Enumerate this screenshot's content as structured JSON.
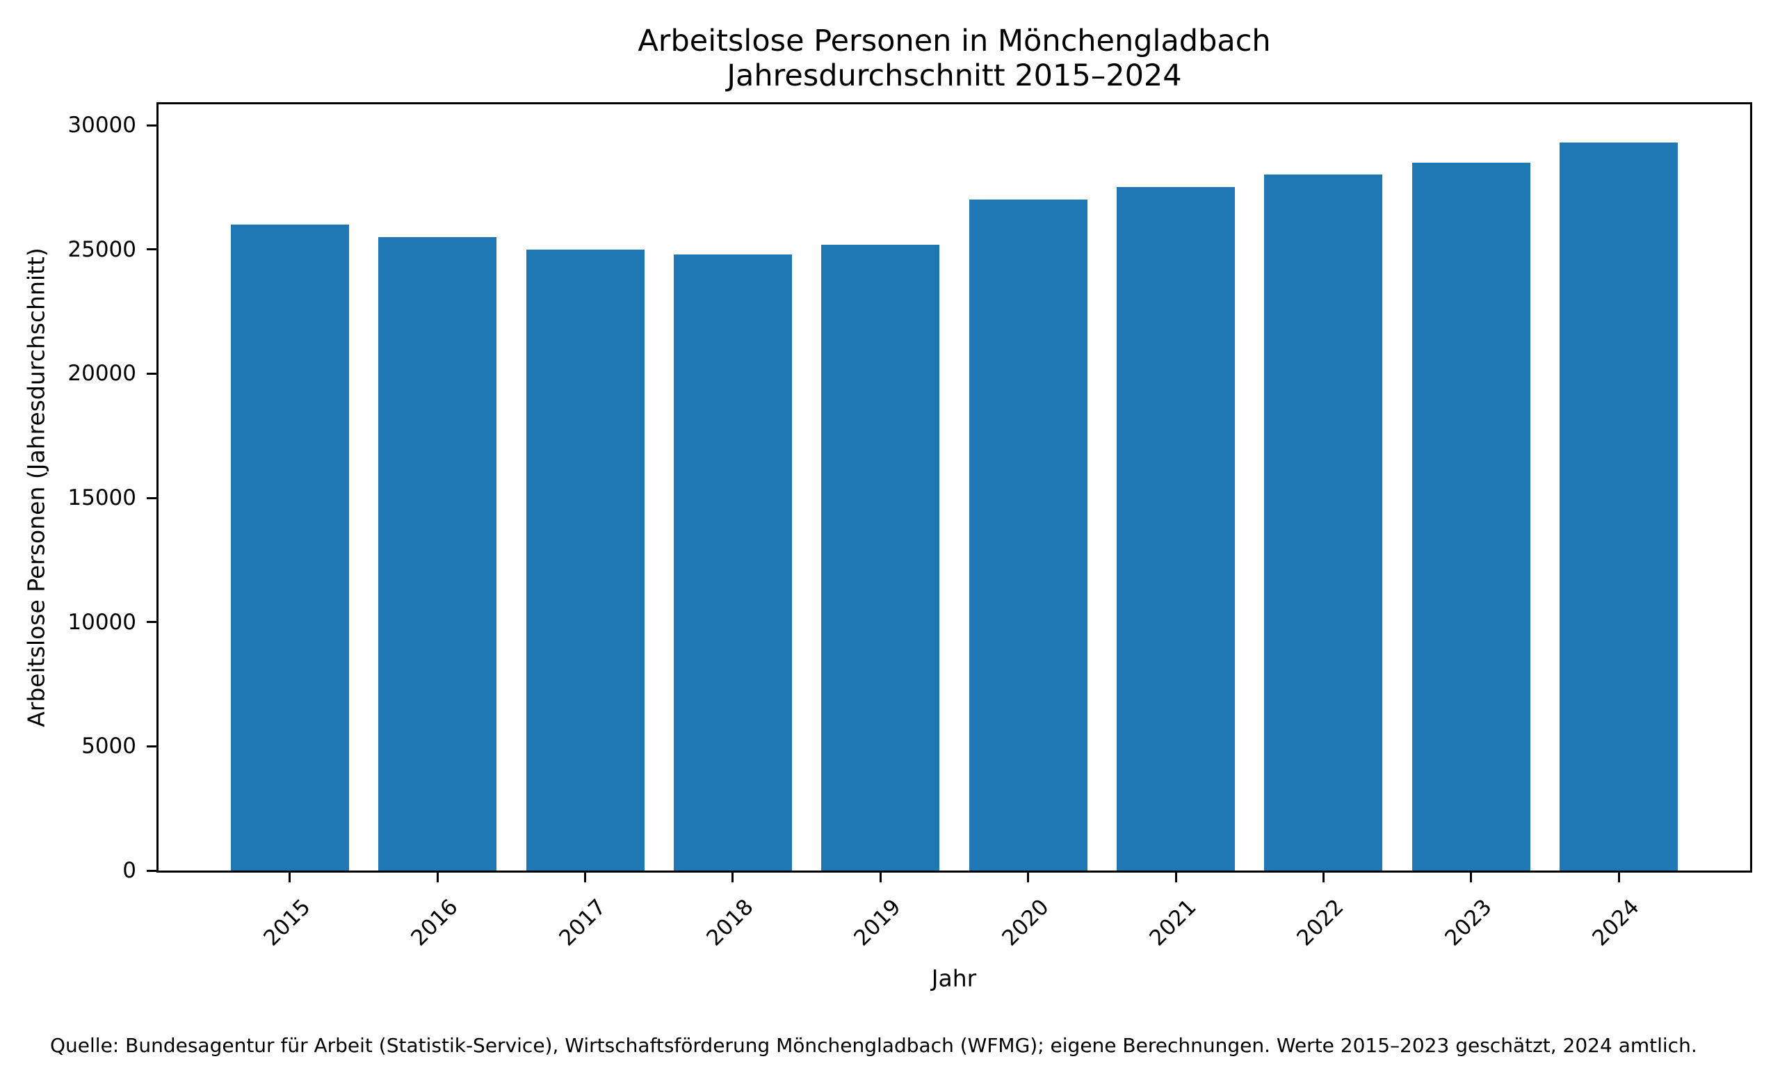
{
  "chart_data": {
    "type": "bar",
    "title": "Arbeitslose Personen in Mönchengladbach",
    "subtitle": "Jahresdurchschnitt 2015–2024",
    "categories": [
      "2015",
      "2016",
      "2017",
      "2018",
      "2019",
      "2020",
      "2021",
      "2022",
      "2023",
      "2024"
    ],
    "values": [
      26000,
      25500,
      25000,
      24800,
      25200,
      27000,
      27500,
      28000,
      28500,
      29300
    ],
    "xlabel": "Jahr",
    "ylabel": "Arbeitslose Personen (Jahresdurchschnitt)",
    "ylim": [
      0,
      30840
    ],
    "yticks": [
      0,
      5000,
      10000,
      15000,
      20000,
      25000,
      30000
    ],
    "bar_color": "#1f77b4",
    "grid": false,
    "legend_position": "none",
    "source_note": "Quelle: Bundesagentur für Arbeit (Statistik-Service), Wirtschaftsförderung Mönchengladbach (WFMG); eigene Berechnungen. Werte 2015–2023 geschätzt, 2024 amtlich."
  }
}
